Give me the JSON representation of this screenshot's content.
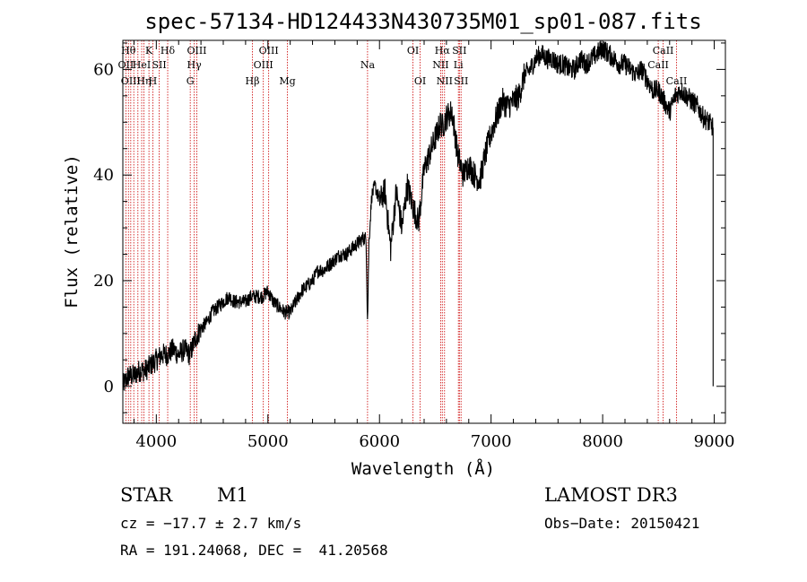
{
  "chart_data": {
    "type": "line",
    "title": "spec-57134-HD124433N430735M01_sp01-087.fits",
    "xlabel": "Wavelength (Å)",
    "ylabel": "Flux (relative)",
    "xlim": [
      3700,
      9100
    ],
    "ylim": [
      -7,
      65.5
    ],
    "x_ticks": [
      4000,
      5000,
      6000,
      7000,
      8000,
      9000
    ],
    "y_ticks": [
      0,
      20,
      40,
      60
    ],
    "grid": false,
    "line_color": "#000000",
    "marker_color": "#cc0000",
    "series": [
      {
        "x": [
          3700,
          3750,
          3800,
          3850,
          3900,
          3950,
          4000,
          4050,
          4100,
          4150,
          4200,
          4250,
          4300,
          4350,
          4400,
          4450,
          4500,
          4550,
          4600,
          4650,
          4700,
          4750,
          4800,
          4850,
          4900,
          4950,
          5000,
          5050,
          5100,
          5150,
          5200,
          5250,
          5300,
          5350,
          5400,
          5450,
          5500,
          5550,
          5600,
          5650,
          5700,
          5750,
          5800,
          5850,
          5880,
          5893,
          5905,
          5930,
          5960,
          6000,
          6050,
          6100,
          6150,
          6200,
          6250,
          6300,
          6350,
          6400,
          6450,
          6500,
          6550,
          6563,
          6580,
          6600,
          6650,
          6700,
          6750,
          6800,
          6850,
          6900,
          6950,
          7000,
          7050,
          7100,
          7150,
          7200,
          7250,
          7300,
          7350,
          7400,
          7450,
          7500,
          7550,
          7600,
          7650,
          7700,
          7750,
          7800,
          7850,
          7900,
          7950,
          8000,
          8050,
          8100,
          8150,
          8200,
          8250,
          8300,
          8350,
          8400,
          8450,
          8500,
          8550,
          8600,
          8650,
          8700,
          8750,
          8800,
          8850,
          8900,
          8950,
          8990
        ],
        "y": [
          0,
          2,
          2,
          3,
          3,
          4,
          5,
          6,
          6,
          7,
          6,
          7,
          6,
          9,
          11,
          12,
          14,
          15,
          16,
          17,
          16,
          16,
          16,
          17,
          17,
          17,
          18,
          16,
          15,
          14,
          14,
          16,
          18,
          19,
          20,
          22,
          22,
          23,
          24,
          25,
          25,
          26,
          27,
          28,
          28,
          12,
          27,
          36,
          38,
          35,
          37,
          26,
          37,
          30,
          38,
          34,
          31,
          41,
          44,
          47,
          50,
          49,
          50,
          51,
          52,
          44,
          40,
          42,
          40,
          39,
          44,
          48,
          51,
          54,
          53,
          54,
          55,
          59,
          60,
          62,
          63,
          62,
          62,
          61,
          61,
          60,
          60,
          62,
          61,
          62,
          63,
          64,
          63,
          62,
          61,
          61,
          60,
          59,
          60,
          58,
          56,
          56,
          54,
          52,
          55,
          56,
          55,
          54,
          53,
          51,
          50,
          49
        ]
      }
    ],
    "line_markers": [
      {
        "wavelength": 3727,
        "row": 1,
        "label": "OII"
      },
      {
        "wavelength": 3750,
        "row": 0,
        "label": "Hθ"
      },
      {
        "wavelength": 3771,
        "row": 2,
        "label": "OIII"
      },
      {
        "wavelength": 3798,
        "row": 0,
        "label": ""
      },
      {
        "wavelength": 3835,
        "row": 2,
        "label": ""
      },
      {
        "wavelength": 3869,
        "row": 1,
        "label": "HeI"
      },
      {
        "wavelength": 3889,
        "row": 2,
        "label": "Hη"
      },
      {
        "wavelength": 3934,
        "row": 0,
        "label": "K"
      },
      {
        "wavelength": 3969,
        "row": 2,
        "label": "H"
      },
      {
        "wavelength": 4026,
        "row": 1,
        "label": "SII"
      },
      {
        "wavelength": 4102,
        "row": 0,
        "label": "Hδ"
      },
      {
        "wavelength": 4304,
        "row": 2,
        "label": "G"
      },
      {
        "wavelength": 4340,
        "row": 1,
        "label": "Hγ"
      },
      {
        "wavelength": 4363,
        "row": 0,
        "label": "OIII"
      },
      {
        "wavelength": 4861,
        "row": 2,
        "label": "Hβ"
      },
      {
        "wavelength": 4959,
        "row": 1,
        "label": "OIII"
      },
      {
        "wavelength": 5007,
        "row": 0,
        "label": "OIII"
      },
      {
        "wavelength": 5175,
        "row": 2,
        "label": "Mg"
      },
      {
        "wavelength": 5893,
        "row": 1,
        "label": "Na"
      },
      {
        "wavelength": 6300,
        "row": 0,
        "label": "OI"
      },
      {
        "wavelength": 6364,
        "row": 2,
        "label": "OI"
      },
      {
        "wavelength": 6548,
        "row": 1,
        "label": "NII"
      },
      {
        "wavelength": 6563,
        "row": 0,
        "label": "Hα"
      },
      {
        "wavelength": 6583,
        "row": 2,
        "label": "NII"
      },
      {
        "wavelength": 6707,
        "row": 1,
        "label": "Li"
      },
      {
        "wavelength": 6716,
        "row": 0,
        "label": "SII"
      },
      {
        "wavelength": 6731,
        "row": 2,
        "label": "SII"
      },
      {
        "wavelength": 8498,
        "row": 1,
        "label": "CaII"
      },
      {
        "wavelength": 8542,
        "row": 0,
        "label": "CaII"
      },
      {
        "wavelength": 8662,
        "row": 2,
        "label": "CaII"
      }
    ]
  },
  "info": {
    "class": "STAR",
    "subclass": "M1",
    "survey": "LAMOST DR3",
    "cz": "cz = −17.7 ± 2.7 km/s",
    "obs_date": "Obs−Date: 20150421",
    "coords": "RA = 191.24068, DEC =  41.20568"
  }
}
